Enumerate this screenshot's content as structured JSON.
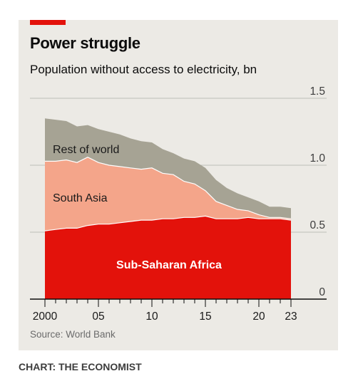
{
  "title": "Power struggle",
  "subtitle": "Population without access to electricity, bn",
  "source": "Source: World Bank",
  "credit": "CHART: THE ECONOMIST",
  "colors": {
    "background": "#eceae5",
    "accent": "#e3120b",
    "sub_saharan_africa": "#e3120b",
    "south_asia": "#f4a58a",
    "rest_of_world": "#a6a394",
    "gridline": "#bdbdb6",
    "axis": "#0c0c0c"
  },
  "chart_data": {
    "type": "area",
    "stacked": true,
    "title": "Power struggle",
    "subtitle": "Population without access to electricity, bn",
    "xlim": [
      2000,
      2023
    ],
    "ylim": [
      0,
      1.5
    ],
    "x_tick_labels": [
      {
        "x": 2000,
        "label": "2000"
      },
      {
        "x": 2005,
        "label": "05"
      },
      {
        "x": 2010,
        "label": "10"
      },
      {
        "x": 2015,
        "label": "15"
      },
      {
        "x": 2020,
        "label": "20"
      },
      {
        "x": 2023,
        "label": "23"
      }
    ],
    "x_minor_ticks": [
      2001,
      2002,
      2003,
      2004,
      2006,
      2007,
      2008,
      2009,
      2011,
      2012,
      2013,
      2014,
      2016,
      2017,
      2018,
      2019,
      2021,
      2022
    ],
    "y_ticks": [
      0,
      0.5,
      1.0,
      1.5
    ],
    "y_tick_labels": [
      "0",
      "0.5",
      "1.0",
      "1.5"
    ],
    "y_axis_side": "right",
    "grid": true,
    "x": [
      2000,
      2001,
      2002,
      2003,
      2004,
      2005,
      2006,
      2007,
      2008,
      2009,
      2010,
      2011,
      2012,
      2013,
      2014,
      2015,
      2016,
      2017,
      2018,
      2019,
      2020,
      2021,
      2022,
      2023
    ],
    "series": [
      {
        "name": "Sub-Saharan Africa",
        "values": [
          0.51,
          0.52,
          0.53,
          0.53,
          0.55,
          0.56,
          0.56,
          0.57,
          0.58,
          0.59,
          0.59,
          0.6,
          0.6,
          0.61,
          0.61,
          0.62,
          0.6,
          0.6,
          0.6,
          0.61,
          0.6,
          0.6,
          0.6,
          0.59
        ]
      },
      {
        "name": "South Asia",
        "values": [
          0.52,
          0.51,
          0.51,
          0.49,
          0.51,
          0.46,
          0.44,
          0.42,
          0.4,
          0.38,
          0.39,
          0.34,
          0.33,
          0.27,
          0.25,
          0.19,
          0.13,
          0.1,
          0.07,
          0.05,
          0.03,
          0.01,
          0.01,
          0.01
        ]
      },
      {
        "name": "Rest of world",
        "values": [
          0.32,
          0.31,
          0.29,
          0.27,
          0.24,
          0.25,
          0.25,
          0.24,
          0.22,
          0.21,
          0.19,
          0.18,
          0.16,
          0.17,
          0.17,
          0.17,
          0.16,
          0.13,
          0.12,
          0.1,
          0.1,
          0.08,
          0.08,
          0.08
        ]
      }
    ],
    "annotations": [
      {
        "text": "Rest of world",
        "series": "Rest of world"
      },
      {
        "text": "South Asia",
        "series": "South Asia"
      },
      {
        "text": "Sub-Saharan Africa",
        "series": "Sub-Saharan Africa"
      }
    ]
  }
}
